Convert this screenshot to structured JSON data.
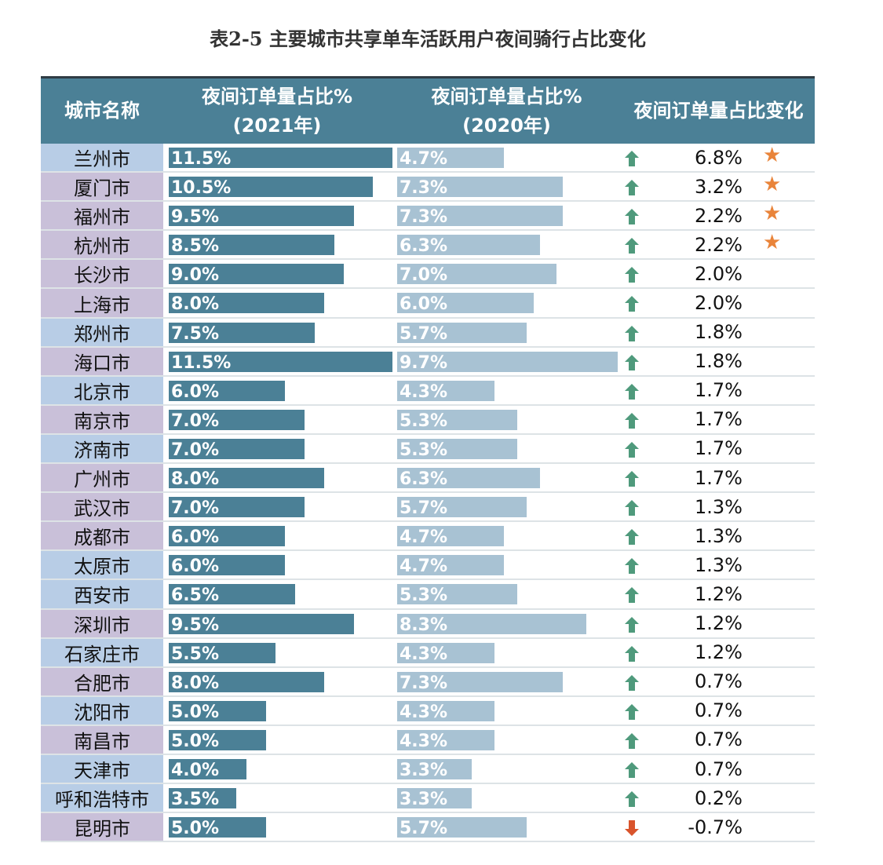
{
  "title": "表2-5 主要城市共享单车活跃用户夜间骑行占比变化",
  "colors": {
    "header": "#4b8096",
    "bar2021": "#4b8096",
    "bar2020": "#a8c2d3",
    "up": "#4f9a7c",
    "down": "#d9542c",
    "star": "#e9843a",
    "blue": "#b8cde6",
    "purple": "#c9c0d9"
  },
  "chart_data": {
    "type": "table",
    "headers": [
      "城市名称",
      "夜间订单量占比%",
      "(2021年)",
      "夜间订单量占比%",
      "(2020年)",
      "夜间订单量占比变化"
    ],
    "rows": [
      {
        "city": "兰州市",
        "v2021": "11.5%",
        "n2021": 11.5,
        "v2020": "4.7%",
        "n2020": 4.7,
        "change": "6.8%",
        "dir": "up",
        "star": true,
        "tone": "blue"
      },
      {
        "city": "厦门市",
        "v2021": "10.5%",
        "n2021": 10.5,
        "v2020": "7.3%",
        "n2020": 7.3,
        "change": "3.2%",
        "dir": "up",
        "star": true,
        "tone": "purple"
      },
      {
        "city": "福州市",
        "v2021": "9.5%",
        "n2021": 9.5,
        "v2020": "7.3%",
        "n2020": 7.3,
        "change": "2.2%",
        "dir": "up",
        "star": true,
        "tone": "purple"
      },
      {
        "city": "杭州市",
        "v2021": "8.5%",
        "n2021": 8.5,
        "v2020": "6.3%",
        "n2020": 6.3,
        "change": "2.2%",
        "dir": "up",
        "star": true,
        "tone": "purple"
      },
      {
        "city": "长沙市",
        "v2021": "9.0%",
        "n2021": 9.0,
        "v2020": "7.0%",
        "n2020": 7.0,
        "change": "2.0%",
        "dir": "up",
        "star": false,
        "tone": "purple"
      },
      {
        "city": "上海市",
        "v2021": "8.0%",
        "n2021": 8.0,
        "v2020": "6.0%",
        "n2020": 6.0,
        "change": "2.0%",
        "dir": "up",
        "star": false,
        "tone": "purple"
      },
      {
        "city": "郑州市",
        "v2021": "7.5%",
        "n2021": 7.5,
        "v2020": "5.7%",
        "n2020": 5.7,
        "change": "1.8%",
        "dir": "up",
        "star": false,
        "tone": "blue"
      },
      {
        "city": "海口市",
        "v2021": "11.5%",
        "n2021": 11.5,
        "v2020": "9.7%",
        "n2020": 9.7,
        "change": "1.8%",
        "dir": "up",
        "star": false,
        "tone": "purple"
      },
      {
        "city": "北京市",
        "v2021": "6.0%",
        "n2021": 6.0,
        "v2020": "4.3%",
        "n2020": 4.3,
        "change": "1.7%",
        "dir": "up",
        "star": false,
        "tone": "blue"
      },
      {
        "city": "南京市",
        "v2021": "7.0%",
        "n2021": 7.0,
        "v2020": "5.3%",
        "n2020": 5.3,
        "change": "1.7%",
        "dir": "up",
        "star": false,
        "tone": "purple"
      },
      {
        "city": "济南市",
        "v2021": "7.0%",
        "n2021": 7.0,
        "v2020": "5.3%",
        "n2020": 5.3,
        "change": "1.7%",
        "dir": "up",
        "star": false,
        "tone": "blue"
      },
      {
        "city": "广州市",
        "v2021": "8.0%",
        "n2021": 8.0,
        "v2020": "6.3%",
        "n2020": 6.3,
        "change": "1.7%",
        "dir": "up",
        "star": false,
        "tone": "purple"
      },
      {
        "city": "武汉市",
        "v2021": "7.0%",
        "n2021": 7.0,
        "v2020": "5.7%",
        "n2020": 5.7,
        "change": "1.3%",
        "dir": "up",
        "star": false,
        "tone": "purple"
      },
      {
        "city": "成都市",
        "v2021": "6.0%",
        "n2021": 6.0,
        "v2020": "4.7%",
        "n2020": 4.7,
        "change": "1.3%",
        "dir": "up",
        "star": false,
        "tone": "purple"
      },
      {
        "city": "太原市",
        "v2021": "6.0%",
        "n2021": 6.0,
        "v2020": "4.7%",
        "n2020": 4.7,
        "change": "1.3%",
        "dir": "up",
        "star": false,
        "tone": "blue"
      },
      {
        "city": "西安市",
        "v2021": "6.5%",
        "n2021": 6.5,
        "v2020": "5.3%",
        "n2020": 5.3,
        "change": "1.2%",
        "dir": "up",
        "star": false,
        "tone": "blue"
      },
      {
        "city": "深圳市",
        "v2021": "9.5%",
        "n2021": 9.5,
        "v2020": "8.3%",
        "n2020": 8.3,
        "change": "1.2%",
        "dir": "up",
        "star": false,
        "tone": "purple"
      },
      {
        "city": "石家庄市",
        "v2021": "5.5%",
        "n2021": 5.5,
        "v2020": "4.3%",
        "n2020": 4.3,
        "change": "1.2%",
        "dir": "up",
        "star": false,
        "tone": "blue"
      },
      {
        "city": "合肥市",
        "v2021": "8.0%",
        "n2021": 8.0,
        "v2020": "7.3%",
        "n2020": 7.3,
        "change": "0.7%",
        "dir": "up",
        "star": false,
        "tone": "purple"
      },
      {
        "city": "沈阳市",
        "v2021": "5.0%",
        "n2021": 5.0,
        "v2020": "4.3%",
        "n2020": 4.3,
        "change": "0.7%",
        "dir": "up",
        "star": false,
        "tone": "blue"
      },
      {
        "city": "南昌市",
        "v2021": "5.0%",
        "n2021": 5.0,
        "v2020": "4.3%",
        "n2020": 4.3,
        "change": "0.7%",
        "dir": "up",
        "star": false,
        "tone": "purple"
      },
      {
        "city": "天津市",
        "v2021": "4.0%",
        "n2021": 4.0,
        "v2020": "3.3%",
        "n2020": 3.3,
        "change": "0.7%",
        "dir": "up",
        "star": false,
        "tone": "blue"
      },
      {
        "city": "呼和浩特市",
        "v2021": "3.5%",
        "n2021": 3.5,
        "v2020": "3.3%",
        "n2020": 3.3,
        "change": "0.2%",
        "dir": "up",
        "star": false,
        "tone": "blue"
      },
      {
        "city": "昆明市",
        "v2021": "5.0%",
        "n2021": 5.0,
        "v2020": "5.7%",
        "n2020": 5.7,
        "change": "-0.7%",
        "dir": "down",
        "star": false,
        "tone": "purple"
      }
    ]
  }
}
